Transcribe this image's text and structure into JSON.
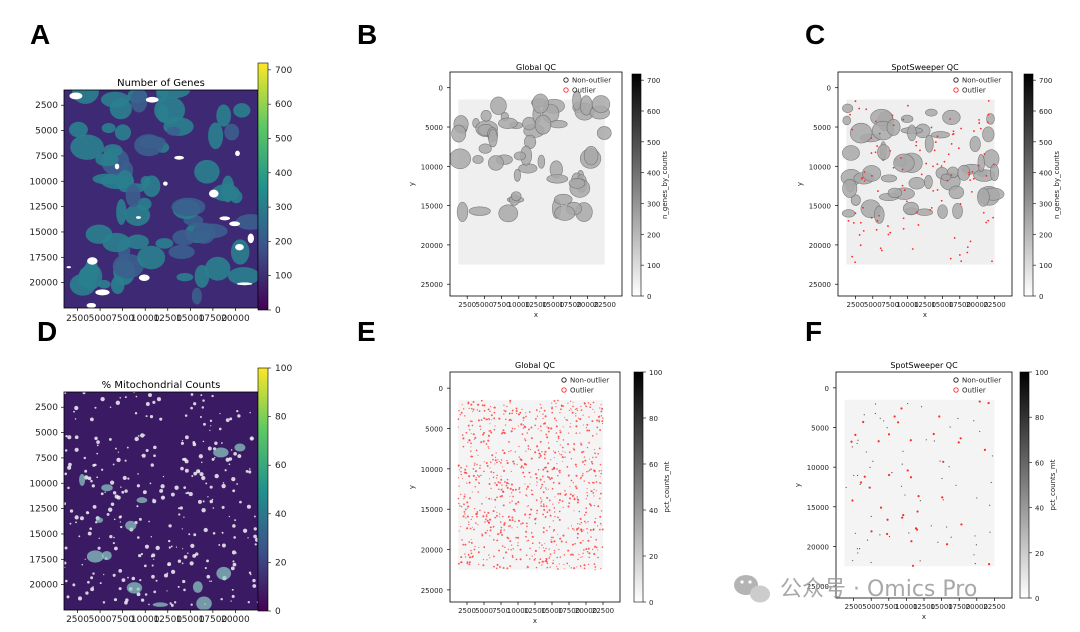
{
  "figure": {
    "letters": [
      "A",
      "B",
      "C",
      "D",
      "E",
      "F"
    ],
    "watermark": "公众号 · Omics Pro",
    "watermark_icon": "wechat-icon"
  },
  "colors": {
    "viridis": [
      "#440154",
      "#3b528b",
      "#21918c",
      "#5ec962",
      "#fde725"
    ],
    "outlier": "#ff2a2a",
    "non_outlier": "#222222"
  },
  "chart_data": [
    {
      "panel": "A",
      "type": "heatmap",
      "title": "Number of Genes",
      "xticks": [
        "2500",
        "5000",
        "7500",
        "10000",
        "12500",
        "15000",
        "17500",
        "20000"
      ],
      "yticks": [
        "2500",
        "5000",
        "7500",
        "10000",
        "12500",
        "15000",
        "17500",
        "20000"
      ],
      "xlim": [
        1000,
        22500
      ],
      "ylim": [
        22500,
        1000
      ],
      "colorbar": {
        "cmap": "viridis",
        "min": 0,
        "max": 720,
        "ticks": [
          "0",
          "100",
          "200",
          "300",
          "400",
          "500",
          "600",
          "700"
        ],
        "label": ""
      },
      "legend": []
    },
    {
      "panel": "B",
      "type": "scatter",
      "title": "Global QC",
      "xlabel": "x",
      "ylabel": "y",
      "xticks": [
        "2500",
        "5000",
        "7500",
        "10000",
        "12500",
        "15000",
        "17500",
        "20000",
        "22500"
      ],
      "yticks": [
        "0",
        "5000",
        "10000",
        "15000",
        "20000",
        "25000"
      ],
      "xlim": [
        0,
        25000
      ],
      "ylim": [
        26500,
        -2000
      ],
      "colorbar": {
        "cmap": "greys",
        "min": 0,
        "max": 720,
        "ticks": [
          "0",
          "100",
          "200",
          "300",
          "400",
          "500",
          "600",
          "700"
        ],
        "label": "n_genes_by_counts"
      },
      "legend": [
        "Non-outlier",
        "Outlier"
      ],
      "legend_loc": "top-right"
    },
    {
      "panel": "C",
      "type": "scatter",
      "title": "SpotSweeper QC",
      "xlabel": "x",
      "ylabel": "y",
      "xticks": [
        "2500",
        "5000",
        "7500",
        "10000",
        "12500",
        "15000",
        "17500",
        "20000",
        "22500"
      ],
      "yticks": [
        "0",
        "5000",
        "10000",
        "15000",
        "20000",
        "25000"
      ],
      "xlim": [
        0,
        25000
      ],
      "ylim": [
        26500,
        -2000
      ],
      "colorbar": {
        "cmap": "greys",
        "min": 0,
        "max": 720,
        "ticks": [
          "0",
          "100",
          "200",
          "300",
          "400",
          "500",
          "600",
          "700"
        ],
        "label": "n_genes_by_counts"
      },
      "legend": [
        "Non-outlier",
        "Outlier"
      ],
      "legend_loc": "top-right"
    },
    {
      "panel": "D",
      "type": "heatmap",
      "title": "% Mitochondrial Counts",
      "xticks": [
        "2500",
        "5000",
        "7500",
        "10000",
        "12500",
        "15000",
        "17500",
        "20000"
      ],
      "yticks": [
        "2500",
        "5000",
        "7500",
        "10000",
        "12500",
        "15000",
        "17500",
        "20000"
      ],
      "xlim": [
        1000,
        22500
      ],
      "ylim": [
        22500,
        1000
      ],
      "colorbar": {
        "cmap": "viridis",
        "min": 0,
        "max": 100,
        "ticks": [
          "0",
          "20",
          "40",
          "60",
          "80",
          "100"
        ],
        "label": ""
      },
      "legend": []
    },
    {
      "panel": "E",
      "type": "scatter",
      "title": "Global QC",
      "xlabel": "x",
      "ylabel": "y",
      "xticks": [
        "2500",
        "5000",
        "7500",
        "10000",
        "12500",
        "15000",
        "17500",
        "20000",
        "22500"
      ],
      "yticks": [
        "0",
        "5000",
        "10000",
        "15000",
        "20000",
        "25000"
      ],
      "xlim": [
        0,
        25000
      ],
      "ylim": [
        26500,
        -2000
      ],
      "colorbar": {
        "cmap": "greys",
        "min": 0,
        "max": 100,
        "ticks": [
          "0",
          "20",
          "40",
          "60",
          "80",
          "100"
        ],
        "label": "pct_counts_mt"
      },
      "legend": [
        "Non-outlier",
        "Outlier"
      ],
      "legend_loc": "top-right"
    },
    {
      "panel": "F",
      "type": "scatter",
      "title": "SpotSweeper QC",
      "xlabel": "x",
      "ylabel": "y",
      "xticks": [
        "2500",
        "5000",
        "7500",
        "10000",
        "12500",
        "15000",
        "17500",
        "20000",
        "22500"
      ],
      "yticks": [
        "0",
        "5000",
        "10000",
        "15000",
        "20000",
        "25000"
      ],
      "xlim": [
        0,
        25000
      ],
      "ylim": [
        26500,
        -2000
      ],
      "colorbar": {
        "cmap": "greys",
        "min": 0,
        "max": 100,
        "ticks": [
          "0",
          "20",
          "40",
          "60",
          "80",
          "100"
        ],
        "label": "pct_counts_mt"
      },
      "legend": [
        "Non-outlier",
        "Outlier"
      ],
      "legend_loc": "top-right"
    }
  ]
}
